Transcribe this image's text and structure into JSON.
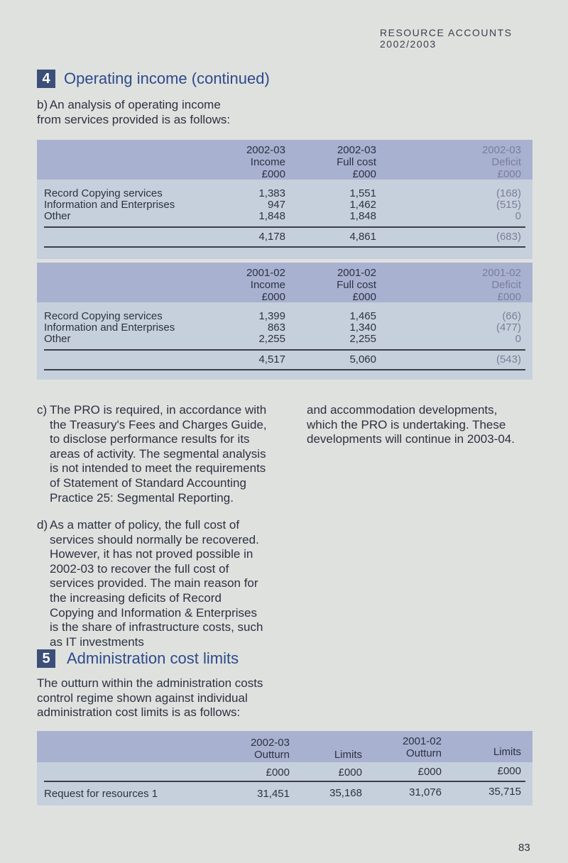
{
  "running_header": "RESOURCE ACCOUNTS 2002/2003",
  "section4": {
    "number": "4",
    "title": "Operating income (continued)"
  },
  "para_b": {
    "label": "b)",
    "text": "An analysis of operating income from services provided is as follows:"
  },
  "table_2002": {
    "headers": [
      [
        "2002-03",
        "Income",
        "£000"
      ],
      [
        "2002-03",
        "Full cost",
        "£000"
      ],
      [
        "2002-03",
        "Deficit",
        "£000"
      ]
    ],
    "rows": [
      {
        "label": "Record Copying services",
        "income": "1,383",
        "cost": "1,551",
        "deficit": "(168)"
      },
      {
        "label": "Information and Enterprises",
        "income": "947",
        "cost": "1,462",
        "deficit": "(515)"
      },
      {
        "label": "Other",
        "income": "1,848",
        "cost": "1,848",
        "deficit": "0"
      }
    ],
    "total": {
      "income": "4,178",
      "cost": "4,861",
      "deficit": "(683)"
    }
  },
  "table_2001": {
    "headers": [
      [
        "2001-02",
        "Income",
        "£000"
      ],
      [
        "2001-02",
        "Full cost",
        "£000"
      ],
      [
        "2001-02",
        "Deficit",
        "£000"
      ]
    ],
    "rows": [
      {
        "label": "Record Copying services",
        "income": "1,399",
        "cost": "1,465",
        "deficit": "(66)"
      },
      {
        "label": "Information and Enterprises",
        "income": "863",
        "cost": "1,340",
        "deficit": "(477)"
      },
      {
        "label": "Other",
        "income": "2,255",
        "cost": "2,255",
        "deficit": "0"
      }
    ],
    "total": {
      "income": "4,517",
      "cost": "5,060",
      "deficit": "(543)"
    }
  },
  "para_c": {
    "label": "c)",
    "text": "The PRO is required, in accordance with the Treasury's Fees and Charges Guide, to disclose performance results for its areas of activity. The segmental analysis is not intended to meet the requirements of Statement of Standard Accounting Practice 25: Segmental Reporting."
  },
  "para_d": {
    "label": "d)",
    "text": "As a matter of policy, the full cost of services should normally be recovered. However, it has not proved possible in 2002-03 to recover the full cost of services provided. The main reason for the increasing deficits of Record Copying and Information & Enterprises is the share of infrastructure costs, such as IT investments"
  },
  "para_right": "and accommodation developments, which the PRO is undertaking. These developments will continue in 2003-04.",
  "section5": {
    "number": "5",
    "title": "Administration cost limits"
  },
  "para_5": "The outturn within the administration costs control regime shown against individual administration cost limits is as follows:",
  "table_admin": {
    "headers": [
      [
        "2002-03",
        "Outturn"
      ],
      [
        "",
        "Limits"
      ],
      [
        "2001-02",
        "Outturn"
      ],
      [
        "",
        "Limits"
      ]
    ],
    "units": [
      "£000",
      "£000",
      "£000",
      "£000"
    ],
    "row": {
      "label": "Request for resources 1",
      "values": [
        "31,451",
        "35,168",
        "31,076",
        "35,715"
      ]
    }
  },
  "page_number": "83",
  "colors": {
    "header_band": "#a9b1d1",
    "table_body": "#c6d0dc",
    "section_accent": "#2d4a8a"
  }
}
